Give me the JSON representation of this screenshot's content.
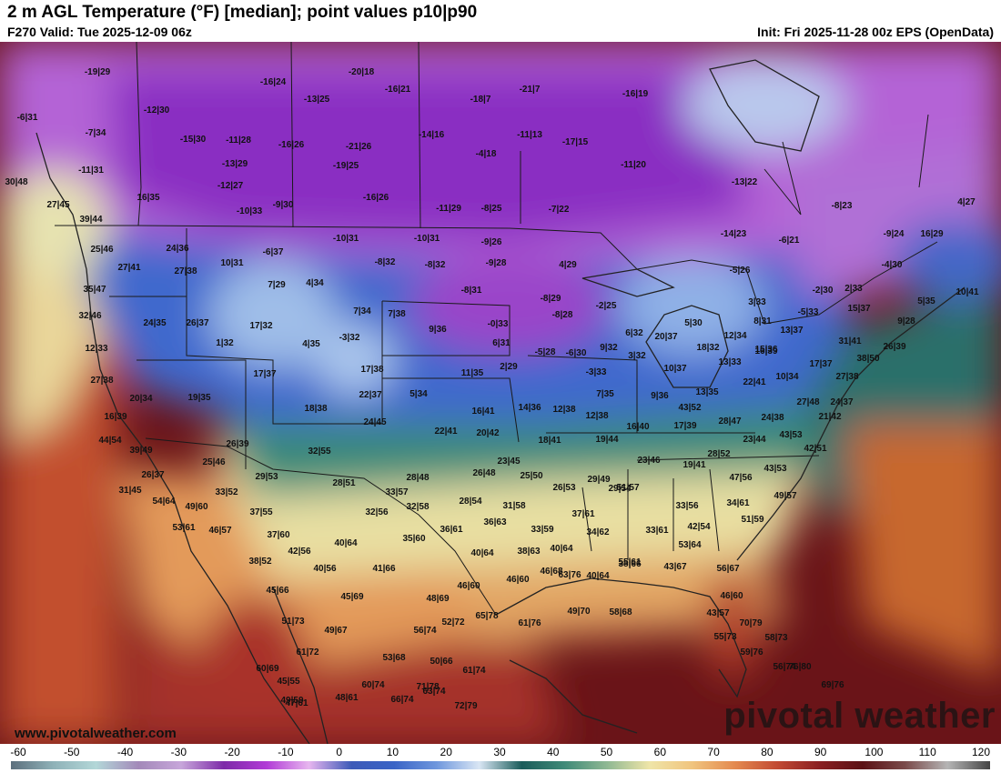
{
  "header": {
    "title": "2 m AGL Temperature (°F) [median]; point values p10|p90",
    "valid": "F270 Valid: Tue 2025-12-09 06z",
    "init": "Init: Fri 2025-11-28 00z EPS (OpenData)"
  },
  "branding": {
    "watermark": "pivotal weather",
    "website": "www.pivotalweather.com"
  },
  "colorbar": {
    "ticks": [
      "-60",
      "-50",
      "-40",
      "-30",
      "-20",
      "-10",
      "0",
      "10",
      "20",
      "30",
      "40",
      "50",
      "60",
      "70",
      "80",
      "90",
      "100",
      "110",
      "120"
    ],
    "gradient_colors": [
      "#5c6f7d",
      "#8fb2b8",
      "#b3d7d8",
      "#a389b9",
      "#c7a6da",
      "#7d2aa8",
      "#b13ad6",
      "#e7b6ef",
      "#3c5ab8",
      "#3a64c6",
      "#6f97dd",
      "#d9e6f4",
      "#1a5c5a",
      "#3f8a78",
      "#8fb893",
      "#efe5a8",
      "#f0c47e",
      "#e48a4f",
      "#c24a33",
      "#8a1f22",
      "#5b1114",
      "#7a4a4a",
      "#b5b5b5",
      "#444444"
    ]
  },
  "map_colors": {
    "very_cold_purple": "#8a2fc2",
    "cold_violet": "#b463d6",
    "freezing_blue": "#3d67cb",
    "light_blue": "#9fbde8",
    "teal": "#2f7d72",
    "mild_yellow": "#eadf9f",
    "warm_orange": "#e39a5a",
    "hot_red": "#a52a24",
    "ocean_maroon": "#6a1418"
  },
  "point_values": [
    "-19|29",
    "-20|18",
    "-16|24",
    "-16|21",
    "-21|7",
    "-16|19",
    "-6|31",
    "-12|30",
    "-13|25",
    "-18|7",
    "-7|34",
    "-15|30",
    "-11|28",
    "-16|26",
    "-21|26",
    "-14|16",
    "-11|13",
    "-17|15",
    "-11|31",
    "-13|29",
    "-19|25",
    "-4|18",
    "-11|20",
    "-12|27",
    "-16|26",
    "-11|29",
    "-8|25",
    "-7|22",
    "-13|22",
    "16|35",
    "-10|33",
    "-9|30",
    "-8|23",
    "30|48",
    "27|45",
    "39|44",
    "-10|31",
    "-10|31",
    "-9|26",
    "-14|23",
    "-6|21",
    "-9|24",
    "16|29",
    "4|27",
    "25|46",
    "24|36",
    "-6|37",
    "-8|32",
    "-8|32",
    "-9|28",
    "4|29",
    "-5|26",
    "-4|30",
    "27|41",
    "10|31",
    "27|38",
    "7|29",
    "4|34",
    "-8|31",
    "-8|29",
    "-2|30",
    "2|33",
    "10|41",
    "35|47",
    "7|34",
    "7|38",
    "-0|33",
    "-8|28",
    "-2|25",
    "3|33",
    "15|37",
    "5|35",
    "32|46",
    "24|35",
    "26|37",
    "17|32",
    "9|36",
    "5|30",
    "8|31",
    "-5|33",
    "13|37",
    "31|41",
    "9|28",
    "12|33",
    "4|35",
    "-3|32",
    "6|31",
    "6|32",
    "20|37",
    "12|34",
    "16|39",
    "26|39",
    "1|32",
    "-5|28",
    "-6|30",
    "9|32",
    "18|32",
    "15|36",
    "38|50",
    "27|38",
    "17|37",
    "17|38",
    "11|35",
    "2|29",
    "-3|33",
    "3|32",
    "10|37",
    "13|33",
    "10|34",
    "17|37",
    "27|38",
    "20|34",
    "19|35",
    "22|37",
    "5|34",
    "7|35",
    "9|36",
    "13|35",
    "22|41",
    "27|48",
    "24|37",
    "18|38",
    "14|36",
    "12|38",
    "12|38",
    "43|52",
    "21|42",
    "16|39",
    "16|41",
    "16|40",
    "17|39",
    "28|47",
    "24|38",
    "24|45",
    "22|41",
    "20|42",
    "18|41",
    "19|44",
    "23|44",
    "43|53",
    "44|54",
    "39|49",
    "26|39",
    "32|55",
    "42|51",
    "25|46",
    "23|45",
    "23|46",
    "19|41",
    "28|52",
    "43|53",
    "26|37",
    "29|53",
    "28|48",
    "26|48",
    "25|50",
    "29|49",
    "47|56",
    "31|45",
    "28|51",
    "26|53",
    "51|57",
    "54|64",
    "49|60",
    "33|52",
    "33|57",
    "28|54",
    "29|54",
    "33|56",
    "34|61",
    "49|57",
    "37|55",
    "32|56",
    "32|58",
    "31|58",
    "37|61",
    "51|59",
    "53|61",
    "46|57",
    "37|60",
    "35|60",
    "36|61",
    "36|63",
    "33|59",
    "34|62",
    "33|61",
    "42|54",
    "42|56",
    "40|64",
    "40|64",
    "38|63",
    "40|64",
    "55|61",
    "53|64",
    "38|52",
    "40|56",
    "41|66",
    "46|68",
    "40|64",
    "38|66",
    "43|67",
    "56|67",
    "45|66",
    "46|60",
    "46|60",
    "45|69",
    "46|60",
    "48|69",
    "63|76",
    "58|68",
    "51|73",
    "52|72",
    "65|78",
    "61|76",
    "49|70",
    "43|57",
    "49|67",
    "56|74",
    "70|79",
    "58|73",
    "55|73",
    "59|76",
    "61|72",
    "53|68",
    "50|66",
    "60|69",
    "61|74",
    "56|74",
    "71|78",
    "45|55",
    "76|80",
    "60|74",
    "69|76",
    "49|59",
    "48|61",
    "66|74",
    "63|74",
    "47|61",
    "72|79"
  ]
}
